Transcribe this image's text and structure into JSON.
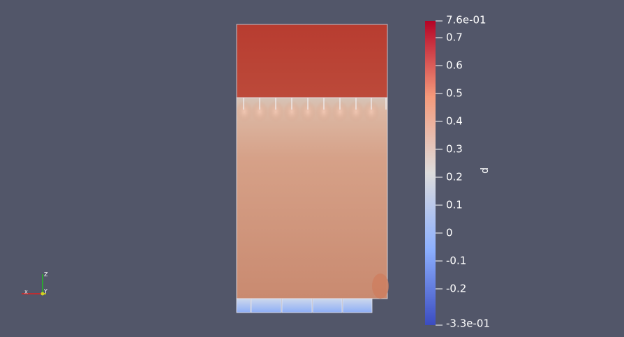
{
  "scene": {
    "field_variable": "p",
    "colormap": "cool-to-warm",
    "colors": {
      "background": "#525669",
      "min": "#3b4cc0",
      "low": "#8db0fe",
      "mid": "#dddcdc",
      "high": "#f49a7b",
      "max": "#b40426",
      "outline": "#e8e8ee"
    }
  },
  "colorbar": {
    "title": "p",
    "range": [
      -0.33,
      0.76
    ],
    "max_label": "7.6e-01",
    "min_label": "-3.3e-01",
    "ticks": [
      {
        "value": 0.7,
        "label": "0.7"
      },
      {
        "value": 0.6,
        "label": "0.6"
      },
      {
        "value": 0.5,
        "label": "0.5"
      },
      {
        "value": 0.4,
        "label": "0.4"
      },
      {
        "value": 0.3,
        "label": "0.3"
      },
      {
        "value": 0.2,
        "label": "0.2"
      },
      {
        "value": 0.1,
        "label": "0.1"
      },
      {
        "value": 0.0,
        "label": "0"
      },
      {
        "value": -0.1,
        "label": "-0.1"
      },
      {
        "value": -0.2,
        "label": "-0.2"
      }
    ]
  },
  "axes_triad": {
    "labels": {
      "x": "X",
      "y": "Y",
      "z": "Z"
    },
    "colors": {
      "x": "#e02020",
      "y": "#e0e020",
      "z": "#20c020"
    }
  }
}
